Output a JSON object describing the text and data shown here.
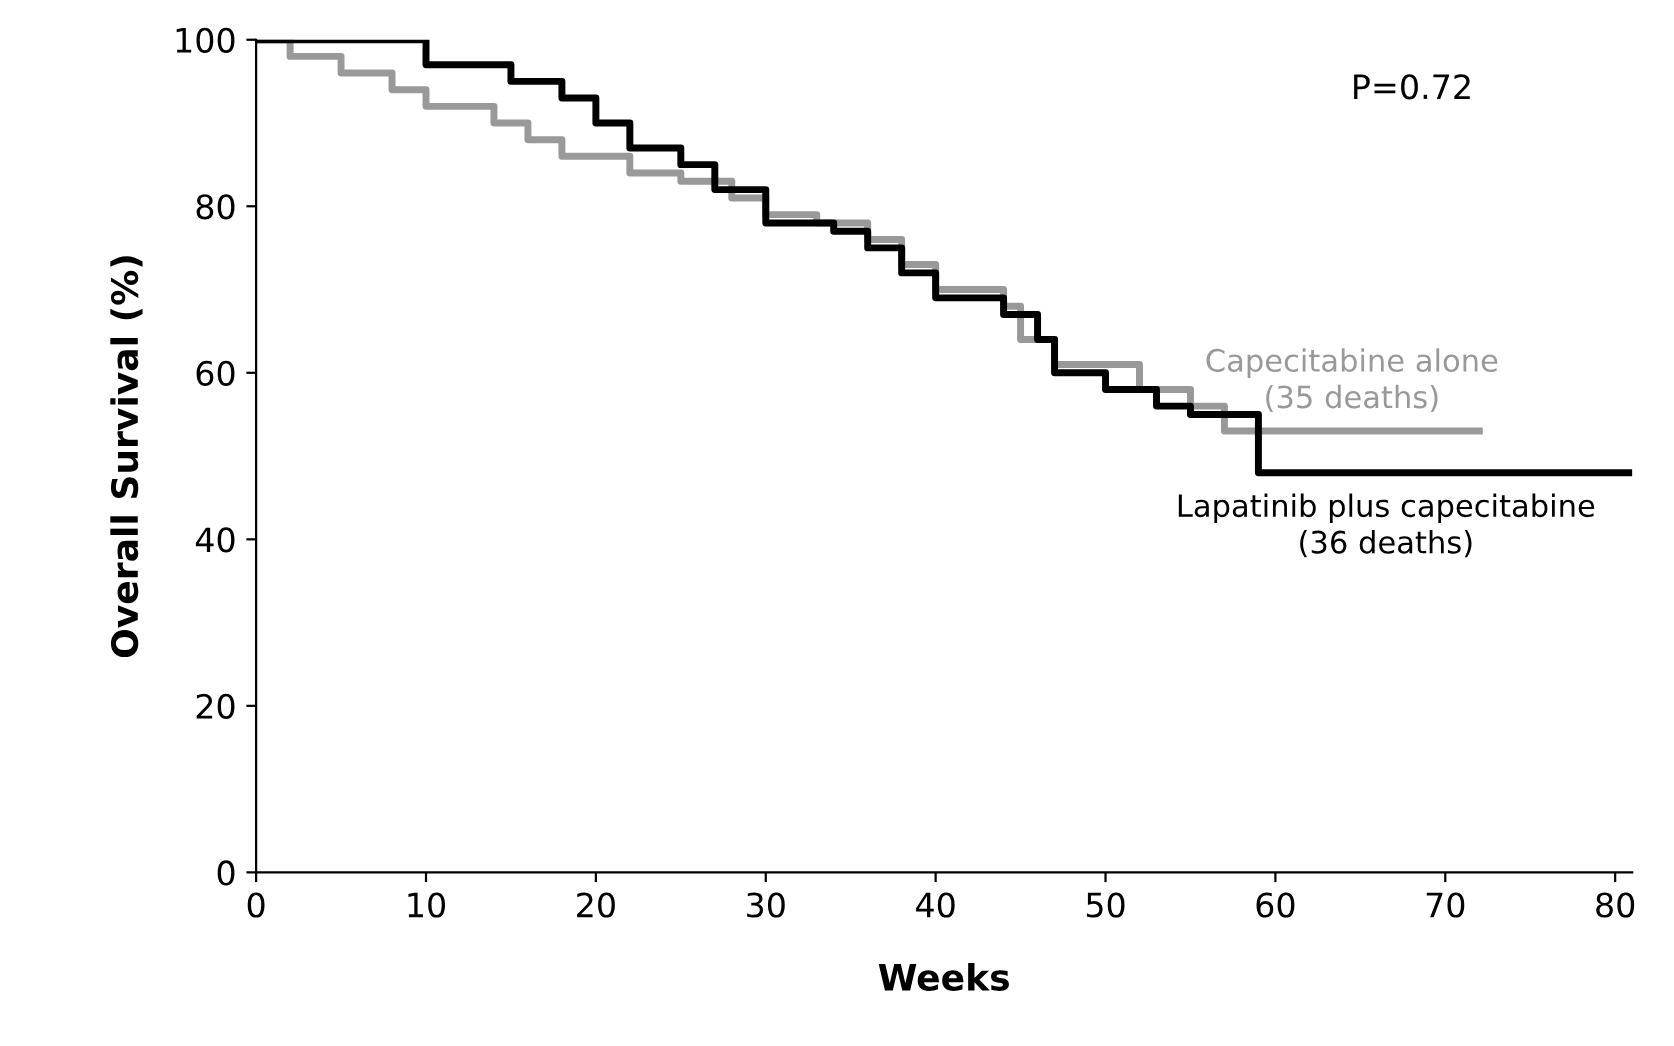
{
  "chart_data": {
    "type": "step",
    "xlabel": "Weeks",
    "ylabel": "Overall Survival (%)",
    "xlim": [
      0,
      81
    ],
    "ylim": [
      0,
      100
    ],
    "xticks": [
      0,
      10,
      20,
      30,
      40,
      50,
      60,
      70,
      80
    ],
    "yticks": [
      0,
      20,
      40,
      60,
      80,
      100
    ],
    "grid": false,
    "legend": false,
    "marker": "none",
    "line_style": "solid",
    "annotations": [
      "P=0.72"
    ],
    "series": [
      {
        "name": "Capecitabine alone\n(35 deaths)",
        "color": "#999999",
        "x": [
          0,
          2,
          5,
          8,
          10,
          14,
          16,
          18,
          22,
          25,
          28,
          30,
          33,
          36,
          38,
          40,
          44,
          45,
          47,
          51,
          52,
          55,
          57,
          72
        ],
        "values": [
          100,
          98,
          96,
          94,
          92,
          90,
          88,
          86,
          84,
          83,
          81,
          79,
          78,
          76,
          73,
          70,
          68,
          64,
          61,
          61,
          58,
          56,
          53,
          53
        ]
      },
      {
        "name": "Lapatinib plus capecitabine\n(36 deaths)",
        "color": "#000000",
        "x": [
          0,
          9,
          10,
          15,
          18,
          20,
          22,
          25,
          27,
          30,
          34,
          36,
          38,
          40,
          43,
          44,
          46,
          47,
          50,
          53,
          55,
          59,
          81
        ],
        "values": [
          100,
          100,
          97,
          95,
          93,
          90,
          87,
          85,
          82,
          78,
          77,
          75,
          72,
          69,
          69,
          67,
          64,
          60,
          58,
          56,
          55,
          48,
          48
        ]
      }
    ]
  }
}
